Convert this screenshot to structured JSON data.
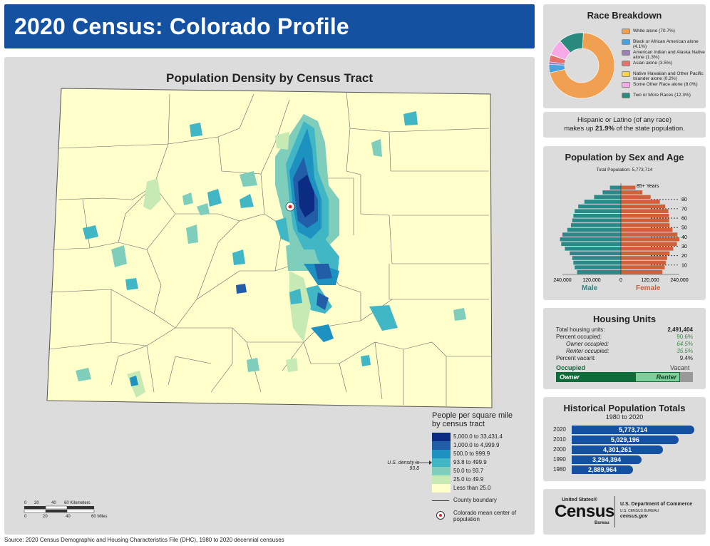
{
  "header": {
    "title": "2020 Census: Colorado Profile"
  },
  "map": {
    "title": "Population Density by Census Tract",
    "legend_title": "People per square mile\nby census tract",
    "legend": [
      {
        "label": "5,000.0 to 33,431.4",
        "color": "#0c2c84"
      },
      {
        "label": "1,000.0 to 4,999.9",
        "color": "#225ea8"
      },
      {
        "label": "500.0 to 999.9",
        "color": "#1d91c0"
      },
      {
        "label": "93.8 to 499.9",
        "color": "#41b6c4"
      },
      {
        "label": "50.0 to 93.7",
        "color": "#7fcdbb"
      },
      {
        "label": "25.0 to 49.9",
        "color": "#c7e9b4"
      },
      {
        "label": "Less than 25.0",
        "color": "#ffffcc"
      }
    ],
    "us_density_note": "U.S. density is 93.8",
    "boundary_label": "County boundary",
    "center_label": "Colorado mean center of population",
    "scale_km": [
      "0",
      "20",
      "40",
      "60 Kilometers"
    ],
    "scale_mi": [
      "0",
      "20",
      "40",
      "60 Miles"
    ]
  },
  "source": "Source: 2020 Census Demographic and Housing Characteristics File (DHC), 1980 to 2020 decennial censuses",
  "race": {
    "title": "Race Breakdown",
    "items": [
      {
        "label": "White alone (70.7%)",
        "value": 70.7,
        "color": "#f0a050"
      },
      {
        "label": "Black or African American alone (4.1%)",
        "value": 4.1,
        "color": "#4aa3df"
      },
      {
        "label": "American Indian and Alaska Native alone (1.3%)",
        "value": 1.3,
        "color": "#9b7fb8"
      },
      {
        "label": "Asian alone (3.5%)",
        "value": 3.5,
        "color": "#e8706a"
      },
      {
        "label": "Native Hawaiian and Other Pacific Islander alone (0.2%)",
        "value": 0.2,
        "color": "#f5d34a"
      },
      {
        "label": "Some Other Race alone (8.0%)",
        "value": 8.0,
        "color": "#f7a8e6"
      },
      {
        "label": "Two or More Races (12.3%)",
        "value": 12.3,
        "color": "#2a8a80"
      }
    ]
  },
  "hispanic": {
    "line1": "Hispanic or Latino (of any race)",
    "pre": "makes up ",
    "pct": "21.9%",
    "post": " of the state population."
  },
  "pyramid": {
    "title": "Population by Sex and Age",
    "total": "Total Population: 5,773,714",
    "top_label": "85+ Years",
    "age_ticks": [
      "80",
      "70",
      "60",
      "50",
      "40",
      "30",
      "20",
      "10"
    ],
    "x_ticks_left": [
      "240,000",
      "120,000",
      "0"
    ],
    "x_ticks_right": [
      "120,000",
      "240,000"
    ],
    "male_label": "Male",
    "female_label": "Female",
    "male_color": "#2a8a8a",
    "female_color": "#d0603a",
    "male": [
      180000,
      190000,
      195000,
      200000,
      210000,
      230000,
      245000,
      250000,
      240000,
      220000,
      205000,
      200000,
      195000,
      190000,
      175000,
      150000,
      110000,
      75000,
      45000
    ],
    "female": [
      170000,
      180000,
      185000,
      190000,
      200000,
      215000,
      230000,
      240000,
      232000,
      212000,
      200000,
      198000,
      197000,
      195000,
      182000,
      160000,
      122000,
      88000,
      60000
    ]
  },
  "housing": {
    "title": "Housing Units",
    "rows": [
      {
        "label": "Total housing units:",
        "value": "2,491,404",
        "indent": false,
        "bold": true
      },
      {
        "label": "Percent occupied:",
        "value": "90.6%",
        "indent": false
      },
      {
        "label": "Owner occupied:",
        "value": "64.5%",
        "indent": true
      },
      {
        "label": "Renter occupied:",
        "value": "35.5%",
        "indent": true
      },
      {
        "label": "Percent vacant:",
        "value": "9.4%",
        "indent": false
      }
    ],
    "occupied_label": "Occupied",
    "vacant_label": "Vacant",
    "owner_label": "Owner",
    "renter_label": "Renter",
    "occupied_pct": 90.6,
    "owner_pct": 64.5
  },
  "historical": {
    "title": "Historical Population Totals",
    "subtitle": "1980 to 2020",
    "rows": [
      {
        "year": "2020",
        "value": 5773714,
        "label": "5,773,714"
      },
      {
        "year": "2010",
        "value": 5029196,
        "label": "5,029,196"
      },
      {
        "year": "2000",
        "value": 4301261,
        "label": "4,301,261"
      },
      {
        "year": "1990",
        "value": 3294394,
        "label": "3,294,394"
      },
      {
        "year": "1980",
        "value": 2889964,
        "label": "2,889,964"
      }
    ]
  },
  "logo": {
    "wordmark_small": "United States®",
    "wordmark": "Census",
    "bureau": "Bureau",
    "dept": "U.S. Department of Commerce",
    "dept_sub": "U.S. CENSUS BUREAU",
    "url": "census.gov"
  },
  "chart_data": [
    {
      "type": "pie",
      "title": "Race Breakdown",
      "categories": [
        "White alone",
        "Black or African American alone",
        "American Indian and Alaska Native alone",
        "Asian alone",
        "Native Hawaiian and Other Pacific Islander alone",
        "Some Other Race alone",
        "Two or More Races"
      ],
      "values": [
        70.7,
        4.1,
        1.3,
        3.5,
        0.2,
        8.0,
        12.3
      ]
    },
    {
      "type": "bar",
      "title": "Historical Population Totals",
      "categories": [
        "2020",
        "2010",
        "2000",
        "1990",
        "1980"
      ],
      "values": [
        5773714,
        5029196,
        4301261,
        3294394,
        2889964
      ]
    }
  ]
}
